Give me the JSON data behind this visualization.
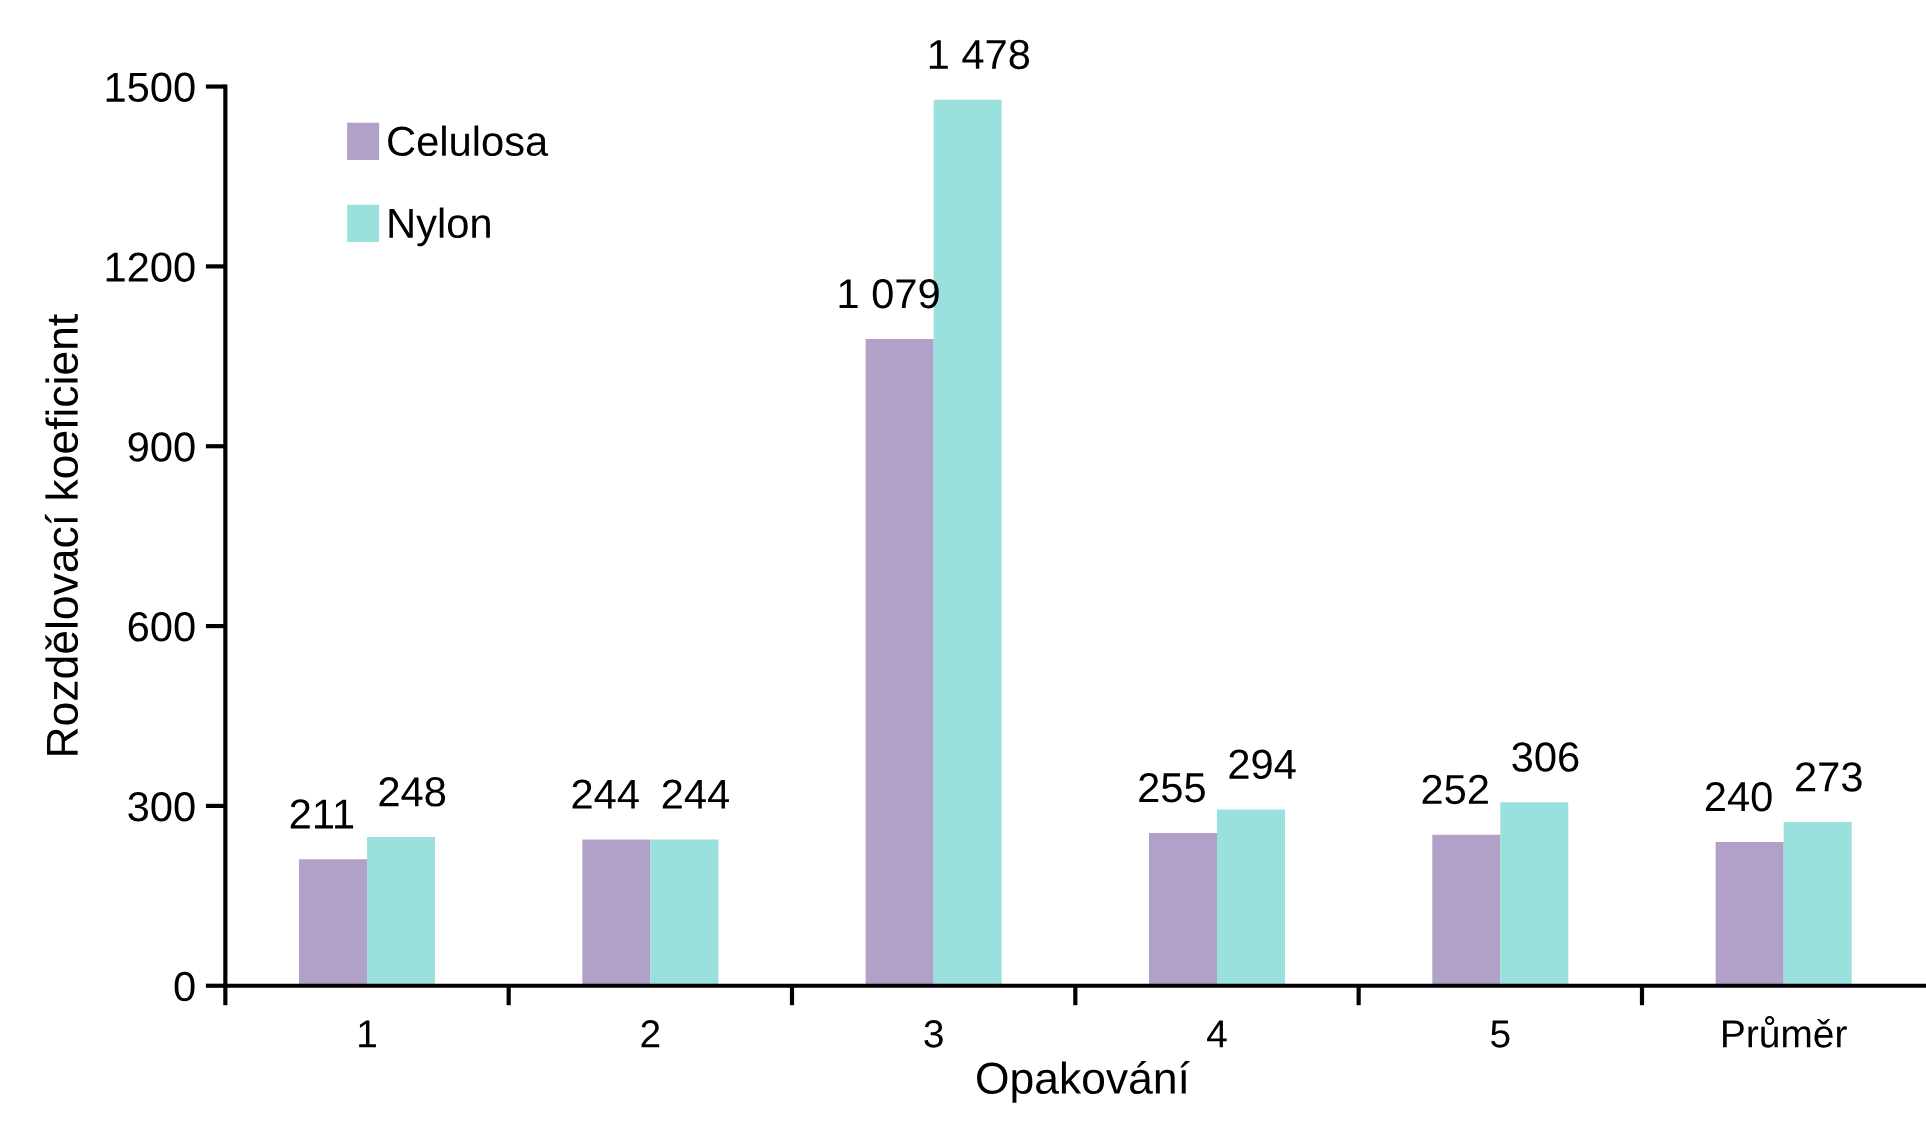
{
  "chart_data": {
    "type": "bar",
    "xlabel": "Opakování",
    "ylabel": "Rozdělovací koeficient",
    "categories": [
      "1",
      "2",
      "3",
      "4",
      "5",
      "Průměr"
    ],
    "series": [
      {
        "name": "Celulosa",
        "color": "#b1a1c8",
        "values": [
          211,
          244,
          1079,
          255,
          252,
          240
        ],
        "value_labels": [
          "211",
          "244",
          "1 079",
          "255",
          "252",
          "240"
        ]
      },
      {
        "name": "Nylon",
        "color": "#9ae1de",
        "values": [
          248,
          244,
          1478,
          294,
          306,
          273
        ],
        "value_labels": [
          "248",
          "244",
          "1 478",
          "294",
          "306",
          "273"
        ]
      }
    ],
    "ylim": [
      0,
      1500
    ],
    "yticks": [
      0,
      300,
      600,
      900,
      1200,
      1500
    ],
    "grid": false,
    "legend": "top left"
  }
}
